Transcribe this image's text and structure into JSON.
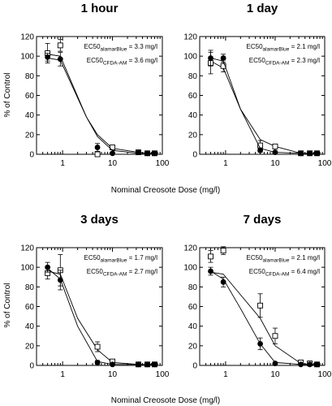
{
  "figure": {
    "xlabel": "Nominal Creosote Dose (mg/l)",
    "ylabel": "% of Control"
  },
  "chart_data": [
    {
      "type": "scatter",
      "title": "1 hour",
      "xscale": "log",
      "xlim": [
        0.3,
        100
      ],
      "ylim": [
        0,
        120
      ],
      "xticks": [
        "1",
        "10",
        "100"
      ],
      "yticks": [
        "0",
        "20",
        "40",
        "60",
        "80",
        "100",
        "120"
      ],
      "annotations": [
        {
          "prefix": "EC50",
          "sub": "alamarBlue",
          "suffix": " = 3.3 mg/l"
        },
        {
          "prefix": "EC50",
          "sub": "CFDA-AM",
          "suffix": " = 3.6 mg/l"
        }
      ],
      "series": [
        {
          "marker": "open-square",
          "x": [
            0.5,
            0.9,
            5,
            10,
            33,
            50,
            70
          ],
          "y": [
            103,
            111,
            0,
            7,
            2,
            1,
            1
          ],
          "err": [
            10,
            6,
            0,
            1,
            1,
            1,
            1
          ],
          "fit_x": [
            0.5,
            0.9,
            3,
            5,
            10,
            33,
            50,
            70
          ],
          "fit_y": [
            102,
            100,
            38,
            20,
            6,
            2,
            1,
            1
          ]
        },
        {
          "marker": "filled-circle",
          "x": [
            0.5,
            0.9,
            5,
            10,
            33,
            50,
            70
          ],
          "y": [
            99,
            97,
            7,
            1,
            2,
            1,
            1
          ],
          "err": [
            4,
            7,
            4,
            1,
            1,
            1,
            1
          ],
          "fit_x": [
            0.5,
            0.9,
            3,
            5,
            10,
            33,
            50,
            70
          ],
          "fit_y": [
            98,
            96,
            38,
            18,
            4,
            1,
            1,
            1
          ]
        }
      ]
    },
    {
      "type": "scatter",
      "title": "1 day",
      "xscale": "log",
      "xlim": [
        0.3,
        100
      ],
      "ylim": [
        0,
        120
      ],
      "xticks": [
        "1",
        "10",
        "100"
      ],
      "yticks": [
        "0",
        "20",
        "40",
        "60",
        "80",
        "100",
        "120"
      ],
      "annotations": [
        {
          "prefix": "EC50",
          "sub": "alamarBlue",
          "suffix": " = 2.1 mg/l"
        },
        {
          "prefix": "EC50",
          "sub": "CFDA-AM",
          "suffix": " = 2.3 mg/l"
        }
      ],
      "series": [
        {
          "marker": "open-square",
          "x": [
            0.5,
            0.9,
            5,
            10,
            33,
            50,
            70
          ],
          "y": [
            93,
            90,
            9,
            8,
            1,
            1,
            1
          ],
          "err": [
            11,
            6,
            5,
            2,
            1,
            1,
            1
          ],
          "fit_x": [
            0.5,
            0.9,
            2,
            5,
            10,
            33,
            50,
            70
          ],
          "fit_y": [
            95,
            88,
            46,
            15,
            8,
            1,
            1,
            1
          ]
        },
        {
          "marker": "filled-circle",
          "x": [
            0.5,
            0.9,
            5,
            10,
            33,
            50,
            70
          ],
          "y": [
            98,
            98,
            4,
            2,
            1,
            1,
            1
          ],
          "err": [
            8,
            4,
            2,
            1,
            1,
            1,
            1
          ],
          "fit_x": [
            0.5,
            0.9,
            2,
            5,
            10,
            33,
            50,
            70
          ],
          "fit_y": [
            98,
            95,
            46,
            6,
            2,
            1,
            1,
            1
          ]
        }
      ]
    },
    {
      "type": "scatter",
      "title": "3 days",
      "xscale": "log",
      "xlim": [
        0.3,
        100
      ],
      "ylim": [
        0,
        120
      ],
      "xticks": [
        "1",
        "10",
        "100"
      ],
      "yticks": [
        "0",
        "20",
        "40",
        "60",
        "80",
        "100",
        "120"
      ],
      "annotations": [
        {
          "prefix": "EC50",
          "sub": "alamarBlue",
          "suffix": " = 1.7 mg/l"
        },
        {
          "prefix": "EC50",
          "sub": "CFDA-AM",
          "suffix": " = 2.7 mg/l"
        }
      ],
      "series": [
        {
          "marker": "open-square",
          "x": [
            0.5,
            0.9,
            5,
            10,
            33,
            50,
            70
          ],
          "y": [
            94,
            97,
            19,
            4,
            1,
            1,
            1
          ],
          "err": [
            6,
            16,
            5,
            2,
            1,
            1,
            1
          ],
          "fit_x": [
            0.5,
            0.9,
            2,
            5,
            10,
            33,
            50,
            70
          ],
          "fit_y": [
            96,
            93,
            48,
            16,
            3,
            1,
            1,
            1
          ]
        },
        {
          "marker": "filled-circle",
          "x": [
            0.5,
            0.9,
            5,
            10,
            33,
            50,
            70
          ],
          "y": [
            100,
            87,
            3,
            1,
            1,
            1,
            1
          ],
          "err": [
            5,
            10,
            2,
            1,
            1,
            1,
            1
          ],
          "fit_x": [
            0.5,
            0.9,
            2,
            5,
            10,
            33,
            50,
            70
          ],
          "fit_y": [
            99,
            88,
            40,
            4,
            1,
            1,
            1,
            1
          ]
        }
      ]
    },
    {
      "type": "scatter",
      "title": "7 days",
      "xscale": "log",
      "xlim": [
        0.3,
        100
      ],
      "ylim": [
        0,
        120
      ],
      "xticks": [
        "1",
        "10",
        "100"
      ],
      "yticks": [
        "0",
        "20",
        "40",
        "60",
        "80",
        "100",
        "120"
      ],
      "annotations": [
        {
          "prefix": "EC50",
          "sub": "alamarBlue",
          "suffix": " = 2.1 mg/l"
        },
        {
          "prefix": "EC50",
          "sub": "CFDA-AM",
          "suffix": " = 6.4 mg/l"
        }
      ],
      "series": [
        {
          "marker": "open-square",
          "x": [
            0.5,
            0.9,
            5,
            10,
            33,
            50,
            70
          ],
          "y": [
            111,
            117,
            61,
            30,
            3,
            2,
            1
          ],
          "err": [
            6,
            4,
            12,
            8,
            2,
            1,
            1
          ],
          "fit_x": [
            0.5,
            0.9,
            2,
            5,
            10,
            33,
            50,
            70
          ],
          "fit_y": [
            95,
            93,
            72,
            48,
            20,
            2,
            1,
            1
          ]
        },
        {
          "marker": "filled-circle",
          "x": [
            0.5,
            0.9,
            5,
            10,
            33,
            50,
            70
          ],
          "y": [
            96,
            85,
            22,
            2,
            1,
            1,
            1
          ],
          "err": [
            4,
            5,
            6,
            1,
            1,
            1,
            1
          ],
          "fit_x": [
            0.5,
            0.9,
            2,
            5,
            10,
            33,
            50,
            70
          ],
          "fit_y": [
            96,
            88,
            58,
            22,
            3,
            1,
            1,
            1
          ]
        }
      ]
    }
  ]
}
